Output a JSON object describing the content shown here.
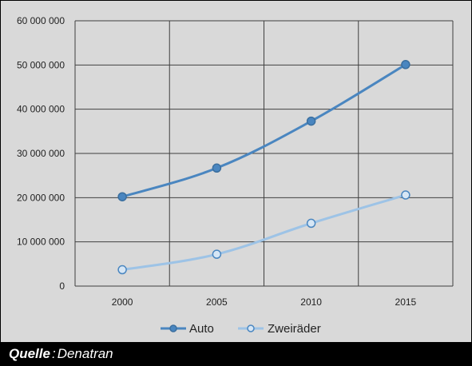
{
  "chart_data": {
    "type": "line",
    "categories": [
      "2000",
      "2005",
      "2010",
      "2015"
    ],
    "series": [
      {
        "name": "Auto",
        "values": [
          20200000,
          26700000,
          37300000,
          50100000
        ],
        "color": "#4a86c0",
        "marker": "filled"
      },
      {
        "name": "Zweiräder",
        "values": [
          3700000,
          7200000,
          14200000,
          20600000
        ],
        "color": "#9dc3e6",
        "marker": "hollow"
      }
    ],
    "yticks": [
      "0",
      "10 000 000",
      "20 000 000",
      "30 000 000",
      "40 000 000",
      "50 000 000",
      "60 000 000"
    ],
    "ylim": [
      0,
      60000000
    ],
    "grid": true,
    "legend_position": "bottom",
    "background": "#d9d9d9",
    "gridline_color": "#404040"
  },
  "source": {
    "label": "Quelle",
    "separator": ":",
    "value": "Denatran"
  }
}
